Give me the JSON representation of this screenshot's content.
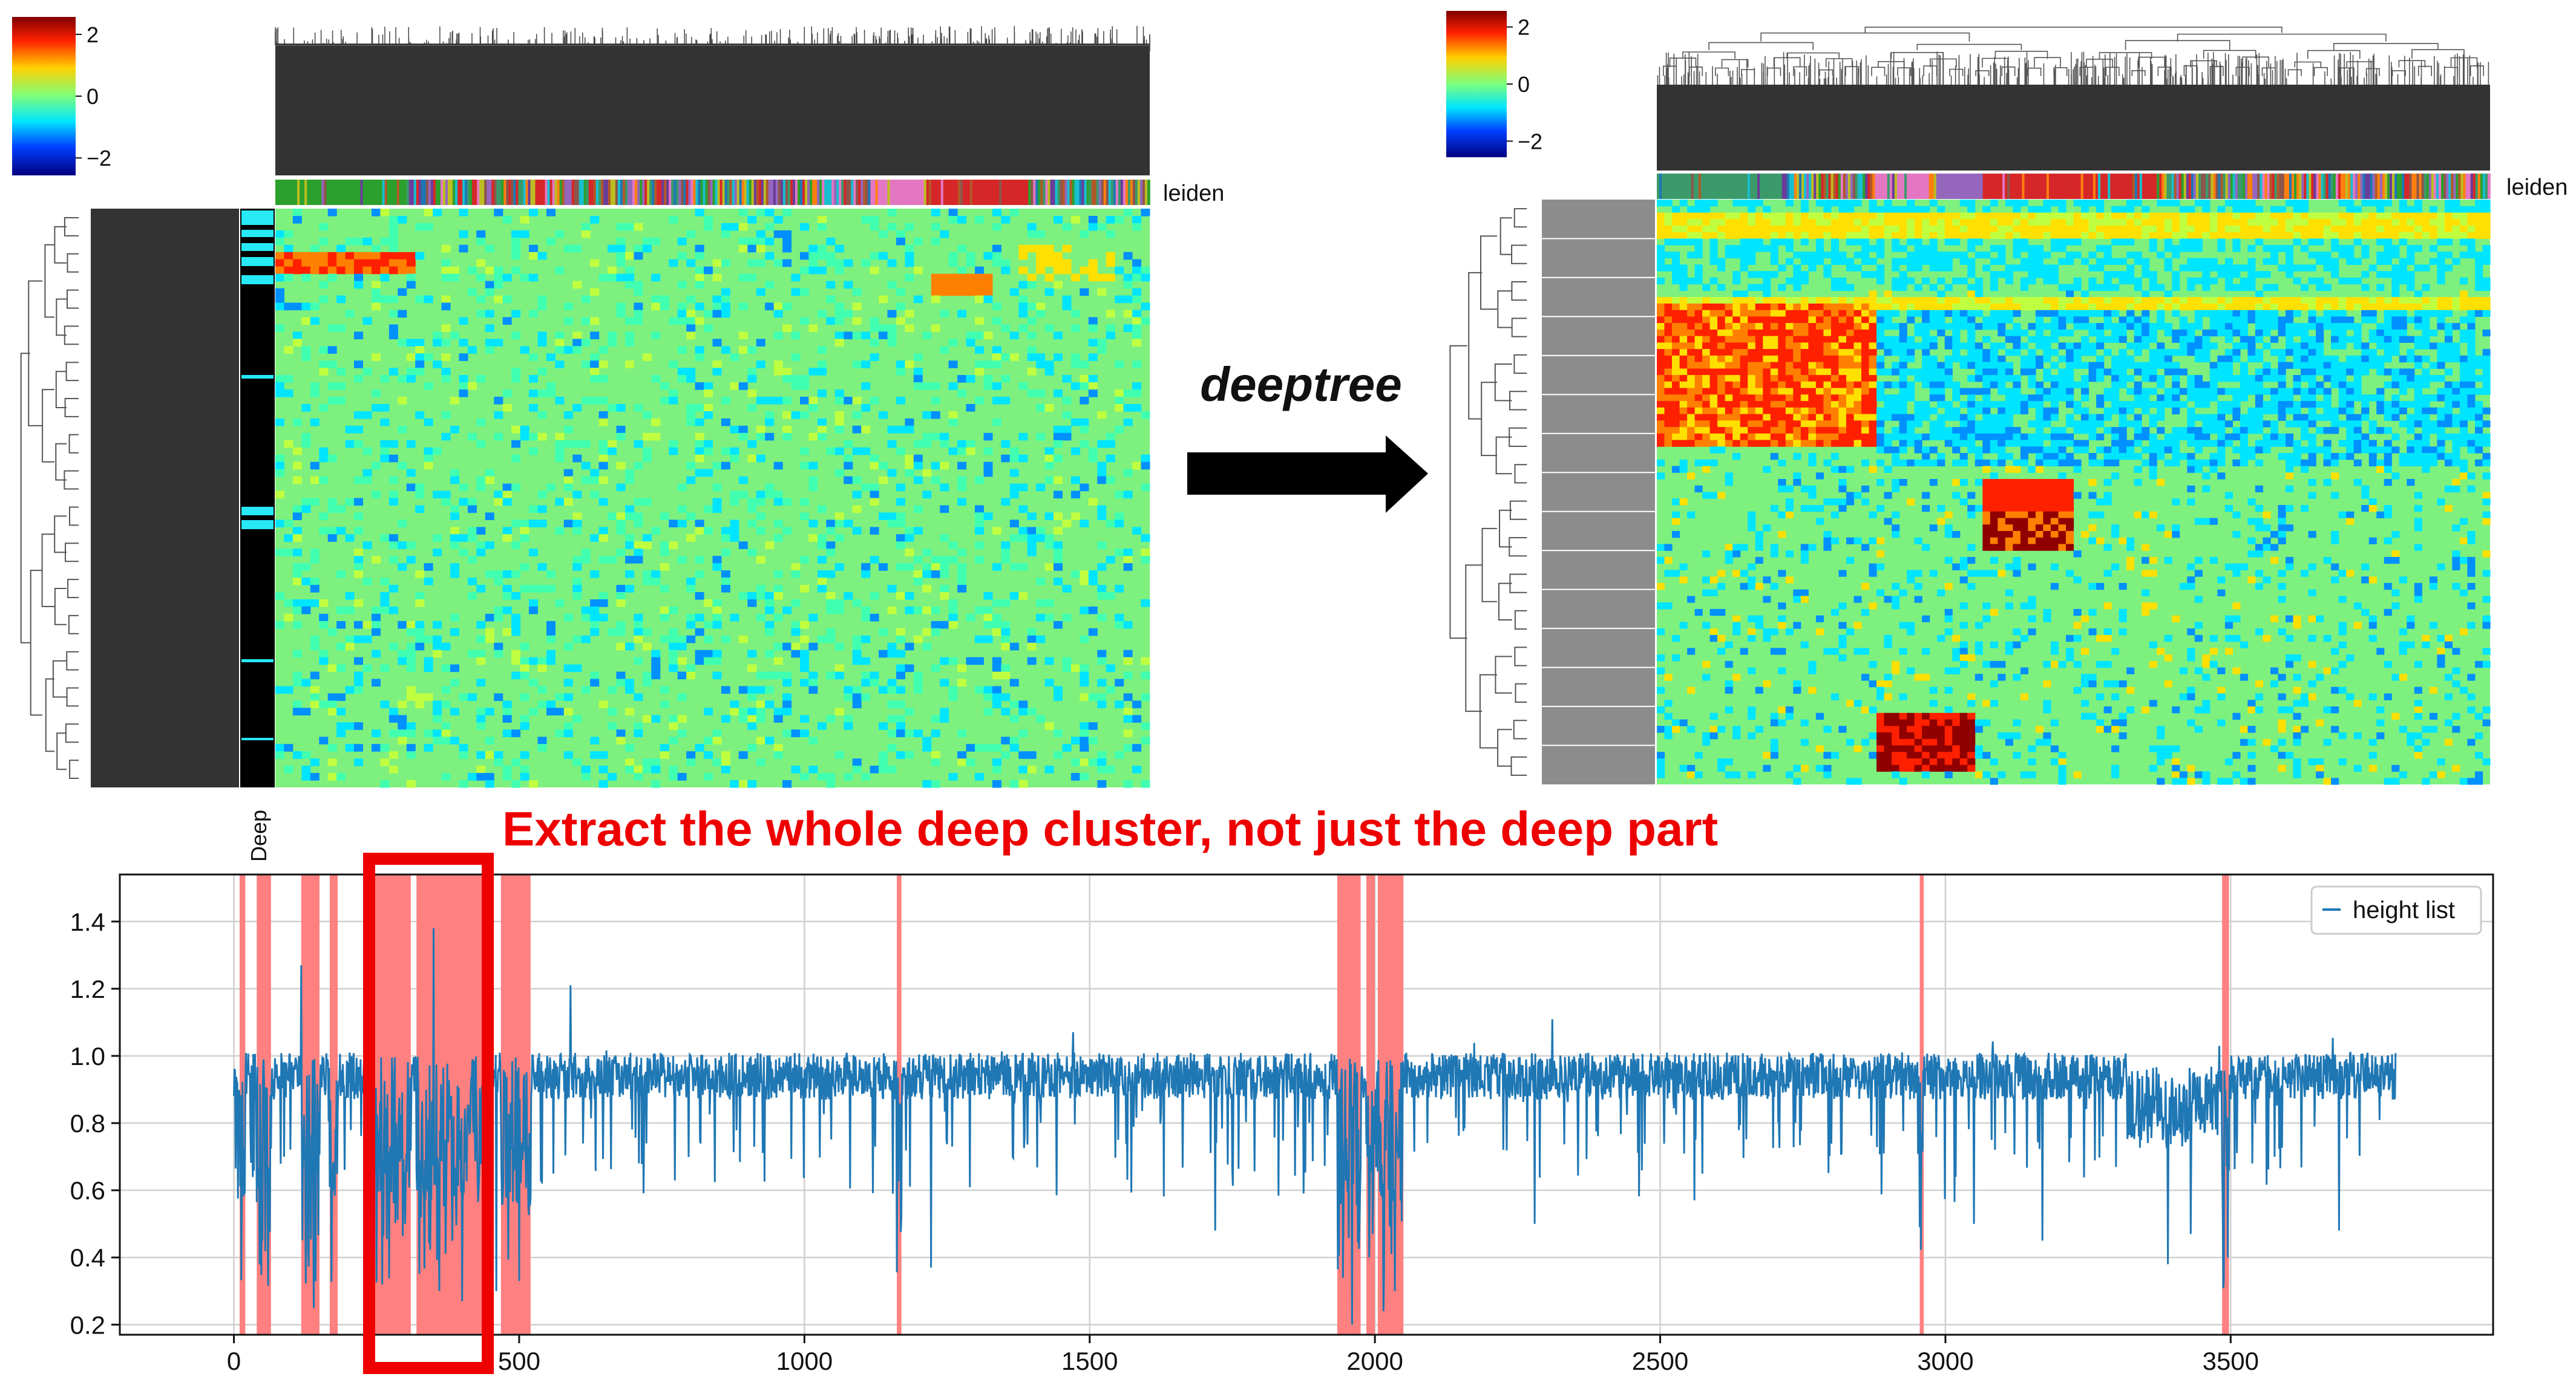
{
  "left_panel": {
    "colorbar_ticks": [
      "2",
      "0",
      "−2"
    ],
    "leiden_label": "leiden",
    "row_annotation_label": "Deep"
  },
  "right_panel": {
    "colorbar_ticks": [
      "2",
      "0",
      "−2"
    ],
    "leiden_label": "leiden"
  },
  "arrow_label": "deeptree",
  "headline": "Extract the whole deep cluster, not just the deep part",
  "colors": {
    "headline": "#ee0000",
    "highlight_band": "#ff8080",
    "line": "#1f77b4",
    "heatmap_base": "#7ef07e"
  },
  "chart_data": {
    "type": "line",
    "series": [
      {
        "name": "height list"
      }
    ],
    "xlim": [
      -200,
      3960
    ],
    "ylim": [
      0.17,
      1.54
    ],
    "xticks": [
      0,
      500,
      1000,
      1500,
      2000,
      2500,
      3000,
      3500
    ],
    "yticks": [
      0.2,
      0.4,
      0.6,
      0.8,
      1.0,
      1.2,
      1.4
    ],
    "xtick_labels": [
      "0",
      "500",
      "1000",
      "1500",
      "2000",
      "2500",
      "3000",
      "3500"
    ],
    "ytick_labels": [
      "0.2",
      "0.4",
      "0.6",
      "0.8",
      "1.0",
      "1.2",
      "1.4"
    ],
    "grid": true,
    "legend": "top-right",
    "n_points": 3790,
    "baseline": 0.94,
    "highlight_bands": [
      [
        10,
        20
      ],
      [
        40,
        65
      ],
      [
        118,
        150
      ],
      [
        168,
        182
      ],
      [
        240,
        310
      ],
      [
        320,
        450
      ],
      [
        468,
        520
      ],
      [
        1162,
        1170
      ],
      [
        1934,
        1975
      ],
      [
        1985,
        2000
      ],
      [
        2005,
        2050
      ],
      [
        2955,
        2962
      ],
      [
        3485,
        3497
      ]
    ],
    "highlight_box": [
      237,
      445
    ],
    "dips": [
      [
        50,
        0.45
      ],
      [
        130,
        0.42
      ],
      [
        140,
        0.25
      ],
      [
        175,
        0.6
      ],
      [
        260,
        0.32
      ],
      [
        300,
        0.5
      ],
      [
        360,
        0.3
      ],
      [
        400,
        0.27
      ],
      [
        460,
        0.3
      ],
      [
        500,
        0.33
      ],
      [
        540,
        0.62
      ],
      [
        710,
        0.68
      ],
      [
        1170,
        0.52
      ],
      [
        1222,
        0.37
      ],
      [
        1720,
        0.48
      ],
      [
        1960,
        0.2
      ],
      [
        1990,
        0.4
      ],
      [
        2015,
        0.24
      ],
      [
        2035,
        0.3
      ],
      [
        2280,
        0.5
      ],
      [
        2560,
        0.57
      ],
      [
        2955,
        0.49
      ],
      [
        3050,
        0.5
      ],
      [
        3170,
        0.45
      ],
      [
        3390,
        0.38
      ],
      [
        3430,
        0.47
      ],
      [
        3488,
        0.33
      ],
      [
        3495,
        0.4
      ],
      [
        3690,
        0.48
      ]
    ],
    "spikes": [
      [
        118,
        1.27
      ],
      [
        260,
        1.5
      ],
      [
        350,
        1.38
      ],
      [
        590,
        1.21
      ]
    ]
  }
}
